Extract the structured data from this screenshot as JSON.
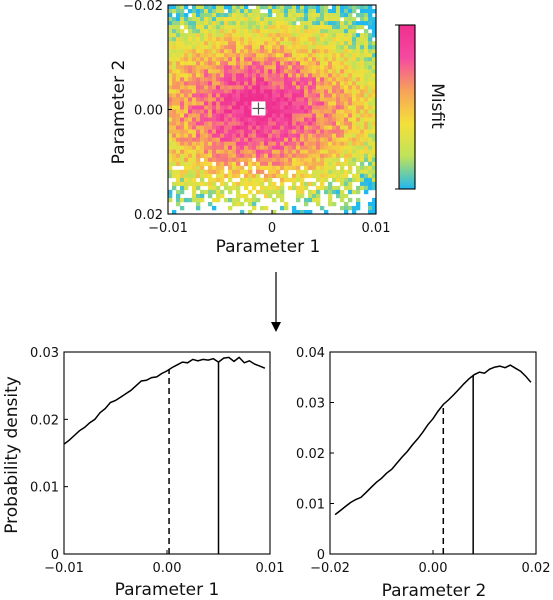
{
  "chart_data": [
    {
      "type": "heatmap",
      "xlabel": "Parameter 1",
      "ylabel": "Parameter 2",
      "xlim": [
        -0.01,
        0.01
      ],
      "ylim": [
        -0.02,
        0.02
      ],
      "x_ticks": [
        "−0.01",
        "0",
        "0.01"
      ],
      "y_ticks": [
        "−0.02",
        "0.00",
        "0.02"
      ],
      "y_inverted": true,
      "colorbar_label": "Misfit",
      "colorbar_colors": [
        "#20b8ee",
        "#c0e25a",
        "#f4e03a",
        "#f7a25a",
        "#f54aa0",
        "#ee2f8e"
      ],
      "best_fit_marker": {
        "x": -0.0013,
        "y": -0.0002
      },
      "grid": false
    },
    {
      "type": "line",
      "xlabel": "Parameter 1",
      "ylabel": "Probability density",
      "xlim": [
        -0.01,
        0.01
      ],
      "ylim": [
        0,
        0.03
      ],
      "x_ticks": [
        "−0.01",
        "0.00",
        "0.01"
      ],
      "y_ticks": [
        "0",
        "0.01",
        "0.02",
        "0.03"
      ],
      "x": [
        -0.01,
        -0.0095,
        -0.009,
        -0.0085,
        -0.008,
        -0.0075,
        -0.007,
        -0.0065,
        -0.006,
        -0.0055,
        -0.005,
        -0.0045,
        -0.004,
        -0.0035,
        -0.003,
        -0.0025,
        -0.002,
        -0.0015,
        -0.001,
        -0.0005,
        0.0,
        0.0005,
        0.001,
        0.0015,
        0.002,
        0.0025,
        0.003,
        0.0035,
        0.004,
        0.0045,
        0.005,
        0.0055,
        0.006,
        0.0065,
        0.007,
        0.0075,
        0.008,
        0.0085,
        0.009,
        0.0095
      ],
      "y": [
        0.0163,
        0.0169,
        0.0176,
        0.0183,
        0.0188,
        0.0195,
        0.02,
        0.021,
        0.0216,
        0.0225,
        0.0228,
        0.0233,
        0.0238,
        0.0243,
        0.025,
        0.0257,
        0.0258,
        0.0262,
        0.0263,
        0.0268,
        0.0272,
        0.0277,
        0.0281,
        0.0285,
        0.0284,
        0.0289,
        0.0287,
        0.0289,
        0.0288,
        0.029,
        0.0285,
        0.0291,
        0.0292,
        0.0286,
        0.0292,
        0.0284,
        0.0287,
        0.0282,
        0.0279,
        0.0276
      ],
      "dashed_line_x": 0.0002,
      "solid_line_x": 0.005,
      "grid": false
    },
    {
      "type": "line",
      "xlabel": "Parameter 2",
      "ylabel": "",
      "xlim": [
        -0.02,
        0.02
      ],
      "ylim": [
        0,
        0.04
      ],
      "x_ticks": [
        "−0.02",
        "0.00",
        "0.02"
      ],
      "y_ticks": [
        "0",
        "0.01",
        "0.02",
        "0.03",
        "0.04"
      ],
      "x": [
        -0.019,
        -0.018,
        -0.017,
        -0.016,
        -0.015,
        -0.014,
        -0.013,
        -0.012,
        -0.011,
        -0.01,
        -0.009,
        -0.008,
        -0.007,
        -0.006,
        -0.005,
        -0.004,
        -0.003,
        -0.002,
        -0.001,
        0.0,
        0.001,
        0.002,
        0.003,
        0.004,
        0.005,
        0.006,
        0.007,
        0.008,
        0.009,
        0.01,
        0.011,
        0.012,
        0.013,
        0.014,
        0.015,
        0.016,
        0.017,
        0.018,
        0.019
      ],
      "y": [
        0.0078,
        0.0086,
        0.0094,
        0.0102,
        0.0108,
        0.0112,
        0.0122,
        0.0132,
        0.0142,
        0.015,
        0.016,
        0.0168,
        0.018,
        0.0192,
        0.0203,
        0.0216,
        0.0228,
        0.0241,
        0.0256,
        0.0268,
        0.0283,
        0.0296,
        0.0305,
        0.0315,
        0.0326,
        0.0337,
        0.0347,
        0.0355,
        0.036,
        0.0358,
        0.0366,
        0.037,
        0.0372,
        0.0369,
        0.0374,
        0.0368,
        0.0362,
        0.0352,
        0.034
      ],
      "dashed_line_x": 0.002,
      "solid_line_x": 0.0078,
      "grid": false
    }
  ]
}
